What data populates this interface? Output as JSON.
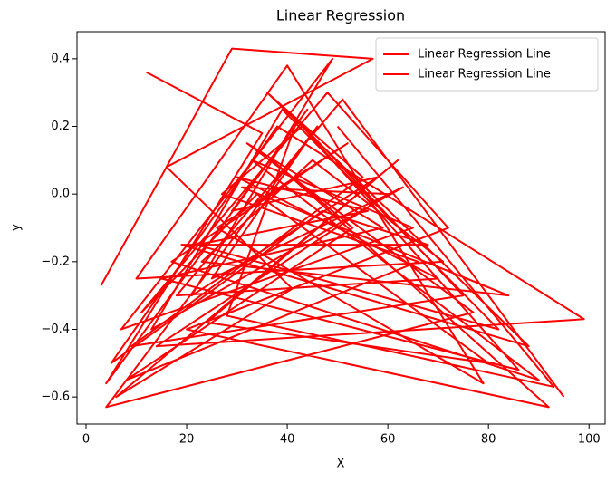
{
  "chart_data": {
    "type": "line",
    "title": "Linear Regression",
    "x_label": "X",
    "y_label": "y",
    "xlim": [
      -1.8,
      103.2
    ],
    "ylim": [
      -0.68,
      0.48
    ],
    "xticks": [
      0,
      20,
      40,
      60,
      80,
      100
    ],
    "yticks": [
      {
        "value": -0.6,
        "label": "−0.6"
      },
      {
        "value": -0.4,
        "label": "−0.4"
      },
      {
        "value": -0.2,
        "label": "−0.2"
      },
      {
        "value": 0,
        "label": "0.0"
      },
      0.2,
      0.4
    ],
    "legend": "upper right",
    "grid": false,
    "series": [
      {
        "name": "Linear Regression Line",
        "color": "#ff0000",
        "x": [
          12,
          35,
          4,
          44,
          29,
          58,
          21,
          49,
          7,
          65,
          33,
          90,
          17,
          52,
          26,
          79,
          40,
          10,
          71,
          45,
          23,
          84,
          31,
          60,
          14,
          99,
          38,
          5,
          47,
          68,
          19,
          88,
          36,
          55,
          9,
          75,
          42,
          28,
          93,
          50
        ],
        "values": [
          0.36,
          0.18,
          -0.56,
          0.25,
          -0.05,
          0.05,
          -0.3,
          0.4,
          -0.4,
          -0.1,
          0.1,
          -0.55,
          -0.2,
          0.15,
          -0.1,
          -0.56,
          0.38,
          -0.25,
          -0.2,
          0.1,
          -0.2,
          -0.3,
          0.02,
          0.0,
          -0.45,
          -0.37,
          0.2,
          -0.5,
          -0.05,
          -0.15,
          -0.15,
          -0.45,
          0.3,
          0.05,
          -0.45,
          -0.3,
          0.22,
          -0.36,
          -0.57,
          0.2
        ]
      },
      {
        "name": "Linear Regression Line",
        "color": "#ff0000",
        "x": [
          3,
          29,
          57,
          16,
          41,
          6,
          62,
          24,
          80,
          34,
          11,
          48,
          72,
          20,
          92,
          37,
          53,
          8,
          66,
          27,
          43,
          86,
          15,
          59,
          32,
          77,
          4,
          46,
          25,
          63,
          13,
          39,
          82,
          22,
          56,
          30,
          70,
          18,
          51,
          95
        ],
        "values": [
          -0.27,
          0.43,
          0.4,
          0.08,
          -0.28,
          -0.6,
          0.1,
          -0.38,
          -0.5,
          0.0,
          -0.35,
          0.3,
          -0.1,
          -0.4,
          -0.63,
          0.1,
          -0.1,
          -0.55,
          -0.2,
          0.0,
          0.2,
          -0.52,
          -0.25,
          -0.1,
          0.15,
          -0.35,
          -0.63,
          0.2,
          -0.25,
          0.02,
          -0.4,
          0.25,
          -0.4,
          -0.15,
          -0.05,
          0.05,
          -0.25,
          -0.3,
          0.28,
          -0.6
        ]
      }
    ]
  }
}
